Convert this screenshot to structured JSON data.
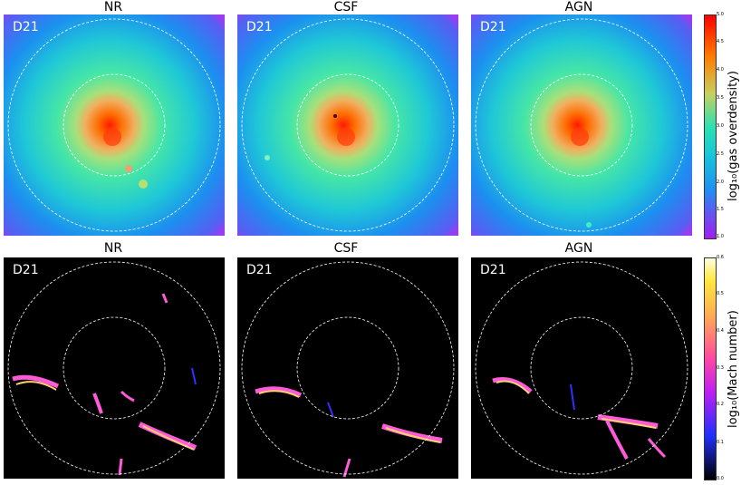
{
  "rows": [
    {
      "panels": [
        {
          "title": "NR",
          "label": "D21"
        },
        {
          "title": "CSF",
          "label": "D21"
        },
        {
          "title": "AGN",
          "label": "D21"
        }
      ],
      "colorbar": {
        "label": "log₁₀(gas overdensity)",
        "ticks": [
          "5.0",
          "4.5",
          "4.0",
          "3.5",
          "3.0",
          "2.5",
          "2.0",
          "1.5",
          "1.0"
        ]
      }
    },
    {
      "panels": [
        {
          "title": "NR",
          "label": "D21"
        },
        {
          "title": "CSF",
          "label": "D21"
        },
        {
          "title": "AGN",
          "label": "D21"
        }
      ],
      "colorbar": {
        "label": "log₁₀(Mach number)",
        "ticks": [
          "0.6",
          "0.5",
          "0.4",
          "0.3",
          "0.2",
          "0.1",
          "0.0"
        ]
      }
    }
  ]
}
